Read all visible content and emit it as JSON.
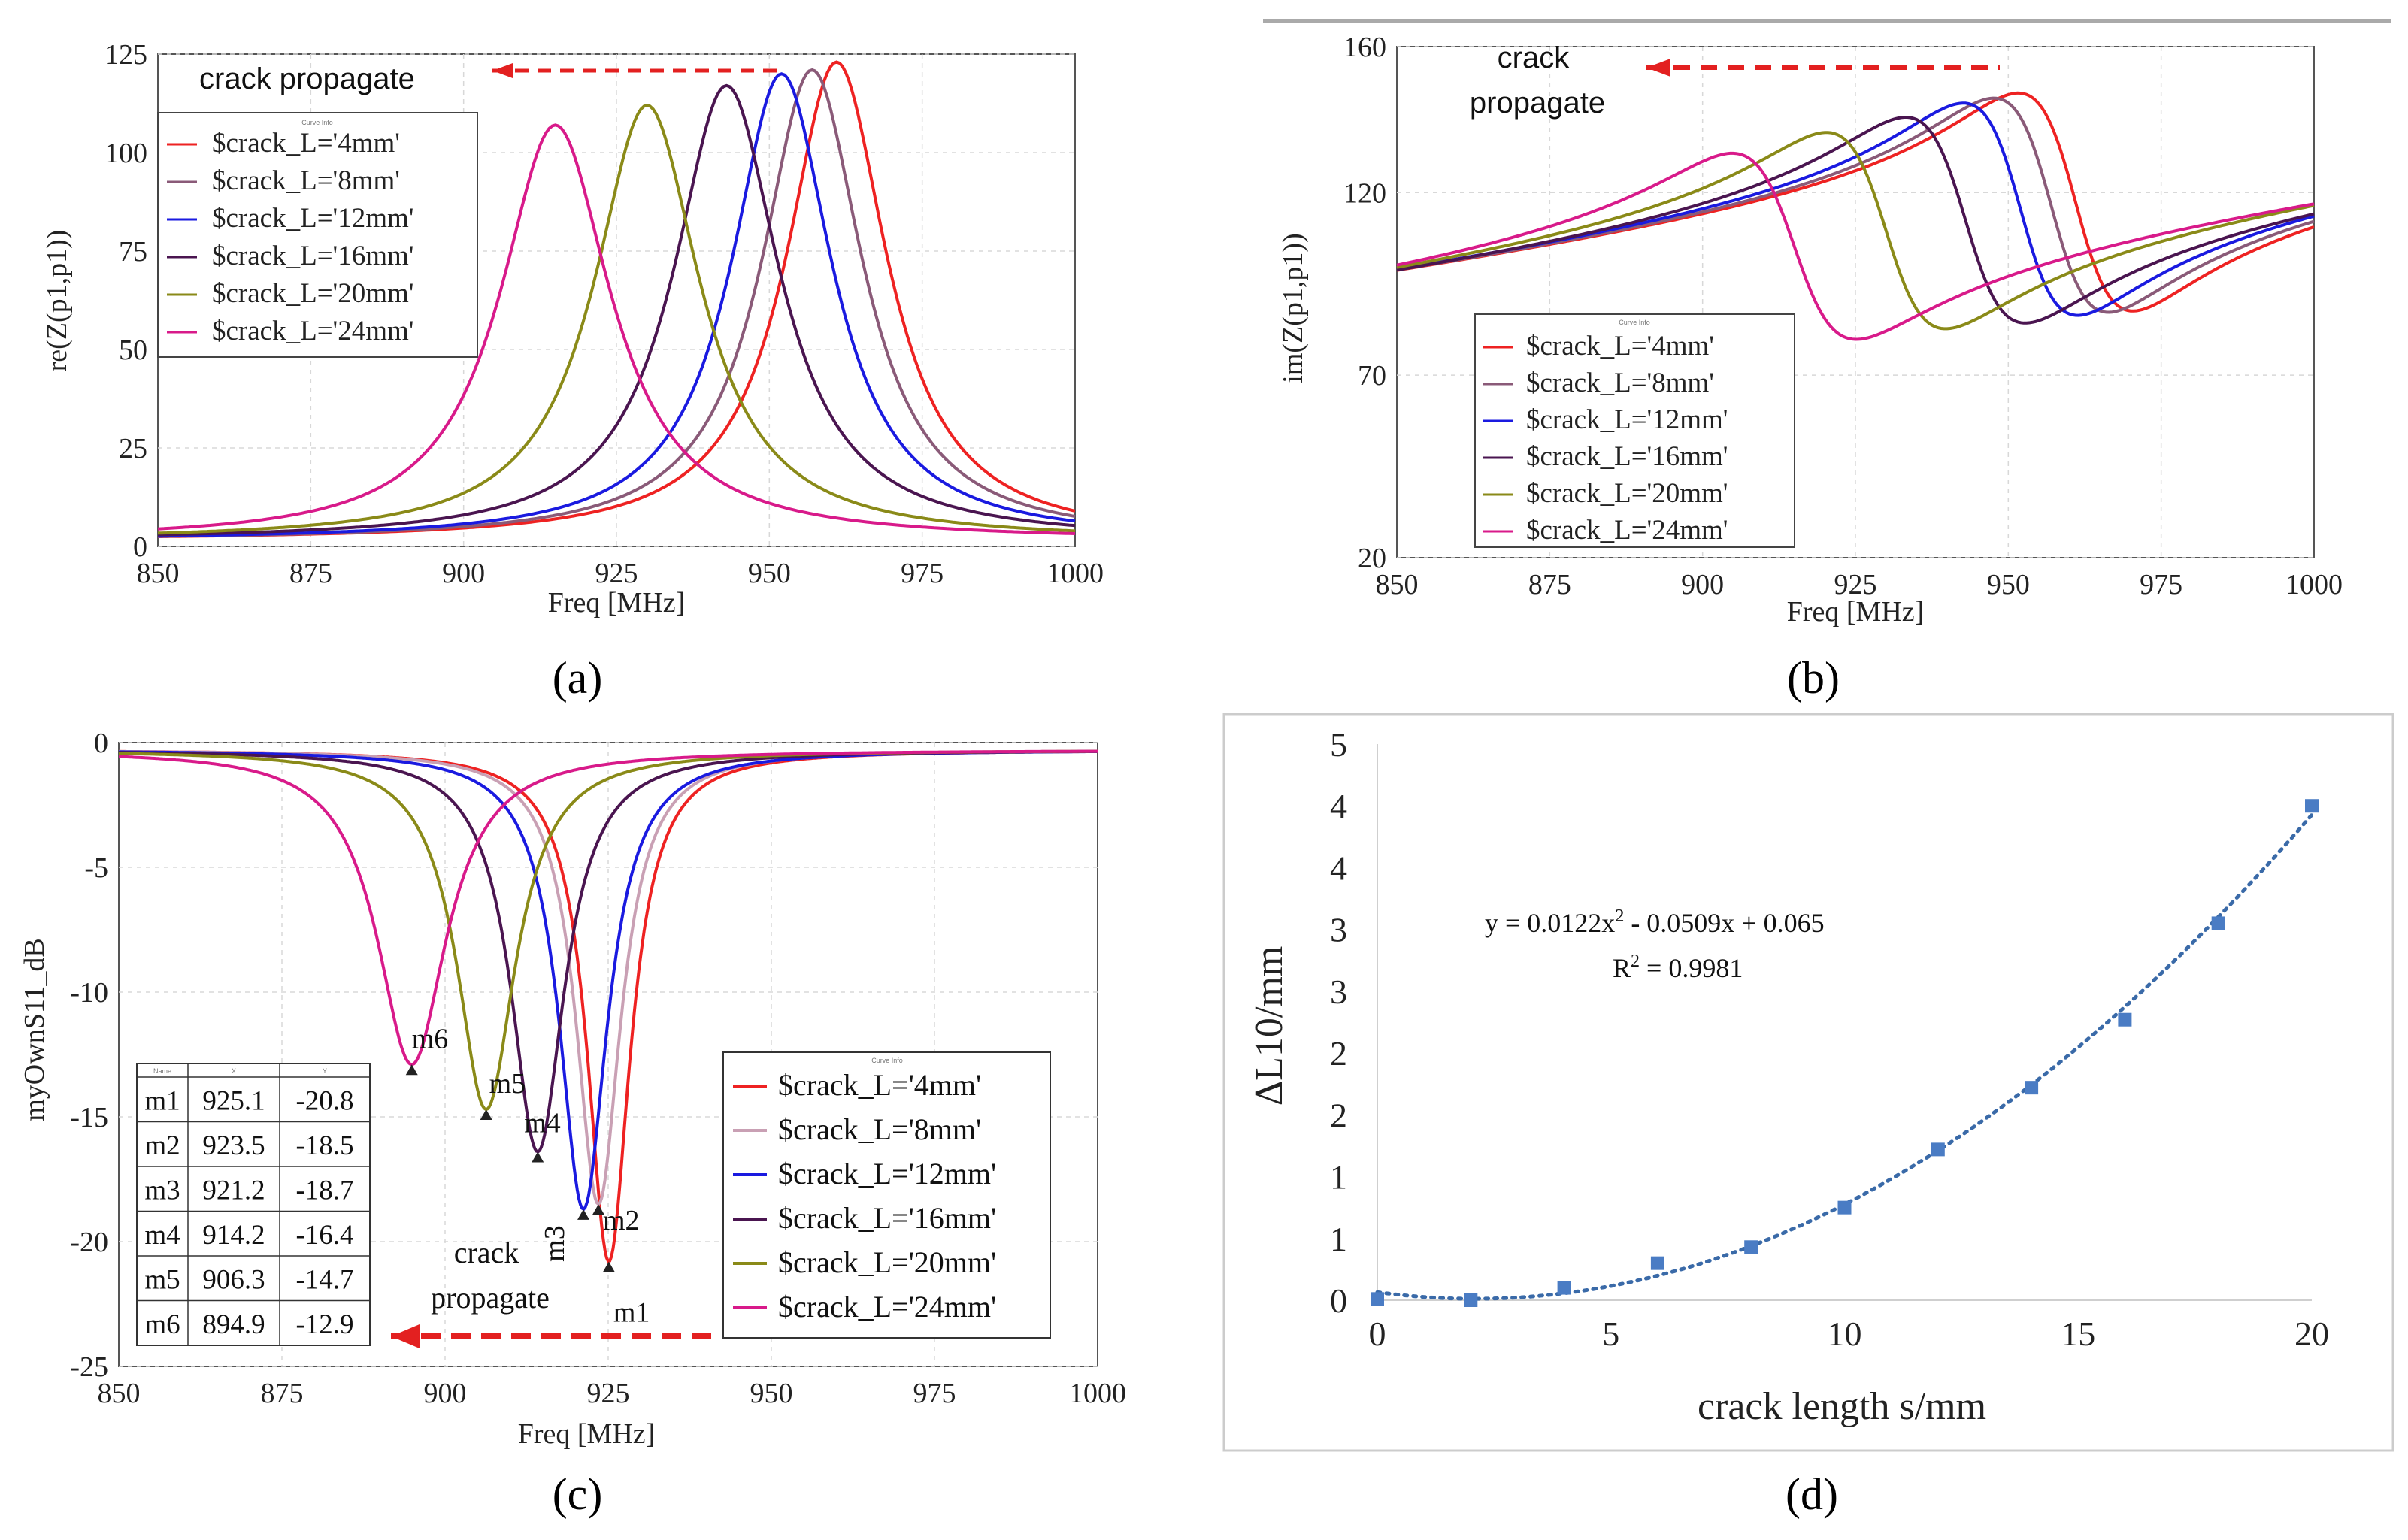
{
  "chart_data": [
    {
      "panel": "a",
      "type": "line",
      "caption": "(a)",
      "xlabel": "Freq [MHz]",
      "ylabel": "re(Z(p1,p1))",
      "xlim": [
        850,
        1000
      ],
      "ylim": [
        0,
        125
      ],
      "xticks": [
        850,
        875,
        900,
        925,
        950,
        975,
        1000
      ],
      "yticks": [
        0,
        25,
        50,
        75,
        100,
        125
      ],
      "annotation": "crack propagate",
      "legend_header": "Curve Info",
      "series": [
        {
          "name": "$crack_L='4mm'",
          "color": "#ee2222",
          "f0": 961,
          "peak": 123,
          "gamma": 10,
          "base": 1.5
        },
        {
          "name": "$crack_L='8mm'",
          "color": "#8a5a78",
          "f0": 957,
          "peak": 121,
          "gamma": 10,
          "base": 1.5
        },
        {
          "name": "$crack_L='12mm'",
          "color": "#1a1ae0",
          "f0": 952,
          "peak": 120,
          "gamma": 10,
          "base": 1.5
        },
        {
          "name": "$crack_L='16mm'",
          "color": "#4a1550",
          "f0": 943,
          "peak": 117,
          "gamma": 10.5,
          "base": 1.5
        },
        {
          "name": "$crack_L='20mm'",
          "color": "#8a8a18",
          "f0": 930,
          "peak": 112,
          "gamma": 10.5,
          "base": 1.5
        },
        {
          "name": "$crack_L='24mm'",
          "color": "#d81a8a",
          "f0": 915,
          "peak": 107,
          "gamma": 11,
          "base": 1.5
        }
      ]
    },
    {
      "panel": "b",
      "type": "line",
      "caption": "(b)",
      "xlabel": "Freq [MHz]",
      "ylabel": "im(Z(p1,p1))",
      "xlim": [
        850,
        1000
      ],
      "ylim": [
        20,
        160
      ],
      "xticks": [
        850,
        875,
        900,
        925,
        950,
        975,
        1000
      ],
      "yticks": [
        20,
        70,
        120,
        160
      ],
      "annotation": "crack\npropagate",
      "legend_header": "Curve Info",
      "series": [
        {
          "name": "$crack_L='4mm'",
          "color": "#ee2222",
          "f0": 961,
          "peak": 123,
          "gamma": 10,
          "off": 93
        },
        {
          "name": "$crack_L='8mm'",
          "color": "#8a5a78",
          "f0": 957,
          "peak": 121,
          "gamma": 10,
          "off": 93
        },
        {
          "name": "$crack_L='12mm'",
          "color": "#1a1ae0",
          "f0": 952,
          "peak": 120,
          "gamma": 10,
          "off": 93
        },
        {
          "name": "$crack_L='16mm'",
          "color": "#4a1550",
          "f0": 943,
          "peak": 117,
          "gamma": 10.5,
          "off": 92
        },
        {
          "name": "$crack_L='20mm'",
          "color": "#8a8a18",
          "f0": 930,
          "peak": 112,
          "gamma": 10.5,
          "off": 92
        },
        {
          "name": "$crack_L='24mm'",
          "color": "#d81a8a",
          "f0": 915,
          "peak": 107,
          "gamma": 11,
          "off": 91
        }
      ]
    },
    {
      "panel": "c",
      "type": "line",
      "caption": "(c)",
      "xlabel": "Freq [MHz]",
      "ylabel": "myOwnS11_dB",
      "xlim": [
        850,
        1000
      ],
      "ylim": [
        -25,
        0
      ],
      "xticks": [
        850,
        875,
        900,
        925,
        950,
        975,
        1000
      ],
      "yticks": [
        0,
        -5,
        -10,
        -15,
        -20,
        -25
      ],
      "annotation": "crack\npropagate",
      "legend_header": "Curve Info",
      "series": [
        {
          "name": "$crack_L='4mm'",
          "color": "#ee2222",
          "f0": 925.1,
          "depth": -20.8,
          "gamma": 4,
          "mid": 937
        },
        {
          "name": "$crack_L='8mm'",
          "color": "#c9a0b4",
          "f0": 923.5,
          "depth": -18.5,
          "gamma": 4.2,
          "mid": 934
        },
        {
          "name": "$crack_L='12mm'",
          "color": "#1a1ae0",
          "f0": 921.2,
          "depth": -18.7,
          "gamma": 4.5,
          "mid": 932
        },
        {
          "name": "$crack_L='16mm'",
          "color": "#4a1550",
          "f0": 914.2,
          "depth": -16.4,
          "gamma": 5,
          "mid": 926
        },
        {
          "name": "$crack_L='20mm'",
          "color": "#8a8a18",
          "f0": 906.3,
          "depth": -14.7,
          "gamma": 5.5,
          "mid": 918
        },
        {
          "name": "$crack_L='24mm'",
          "color": "#d81a8a",
          "f0": 894.9,
          "depth": -12.9,
          "gamma": 6.5,
          "mid": 908
        }
      ],
      "markers": [
        {
          "name": "m1",
          "x": 925.1,
          "y": -20.8
        },
        {
          "name": "m2",
          "x": 923.5,
          "y": -18.5
        },
        {
          "name": "m3",
          "x": 921.2,
          "y": -18.7
        },
        {
          "name": "m4",
          "x": 914.2,
          "y": -16.4
        },
        {
          "name": "m5",
          "x": 906.3,
          "y": -14.7
        },
        {
          "name": "m6",
          "x": 894.9,
          "y": -12.9
        }
      ],
      "table_header": [
        "Name",
        "X",
        "Y"
      ],
      "table_rows": [
        [
          "m1",
          "925.1",
          "-20.8"
        ],
        [
          "m2",
          "923.5",
          "-18.5"
        ],
        [
          "m3",
          "921.2",
          "-18.7"
        ],
        [
          "m4",
          "914.2",
          "-16.4"
        ],
        [
          "m5",
          "906.3",
          "-14.7"
        ],
        [
          "m6",
          "894.9",
          "-12.9"
        ]
      ]
    },
    {
      "panel": "d",
      "type": "scatter",
      "caption": "(d)",
      "xlabel": "crack length s/mm",
      "ylabel": "ΔL10/mm",
      "xlim": [
        0,
        20
      ],
      "ylim": [
        0,
        4.5
      ],
      "xticks": [
        0,
        5,
        10,
        15,
        20
      ],
      "ytick_values": [
        0,
        0.5,
        1,
        1.5,
        2,
        2.5,
        3,
        3.5,
        4,
        4.5
      ],
      "ytick_labels": [
        "0",
        "1",
        "1",
        "2",
        "2",
        "3",
        "3",
        "4",
        "4",
        "5"
      ],
      "x": [
        0,
        2,
        4,
        6,
        8,
        10,
        12,
        14,
        16,
        18,
        20
      ],
      "y": [
        0.01,
        0.0,
        0.1,
        0.3,
        0.43,
        0.75,
        1.22,
        1.72,
        2.27,
        3.05,
        4.0
      ],
      "trendline": {
        "a": 0.0122,
        "b": -0.0509,
        "c": 0.065
      },
      "equation": "y = 0.0122x",
      "equation_sup": "2",
      "equation_rest": " - 0.0509x + 0.065",
      "r2_label": "R",
      "r2_sup": "2",
      "r2_rest": " = 0.9981",
      "point_color": "#4a7cc4",
      "trend_color": "#3a6aa8"
    }
  ]
}
